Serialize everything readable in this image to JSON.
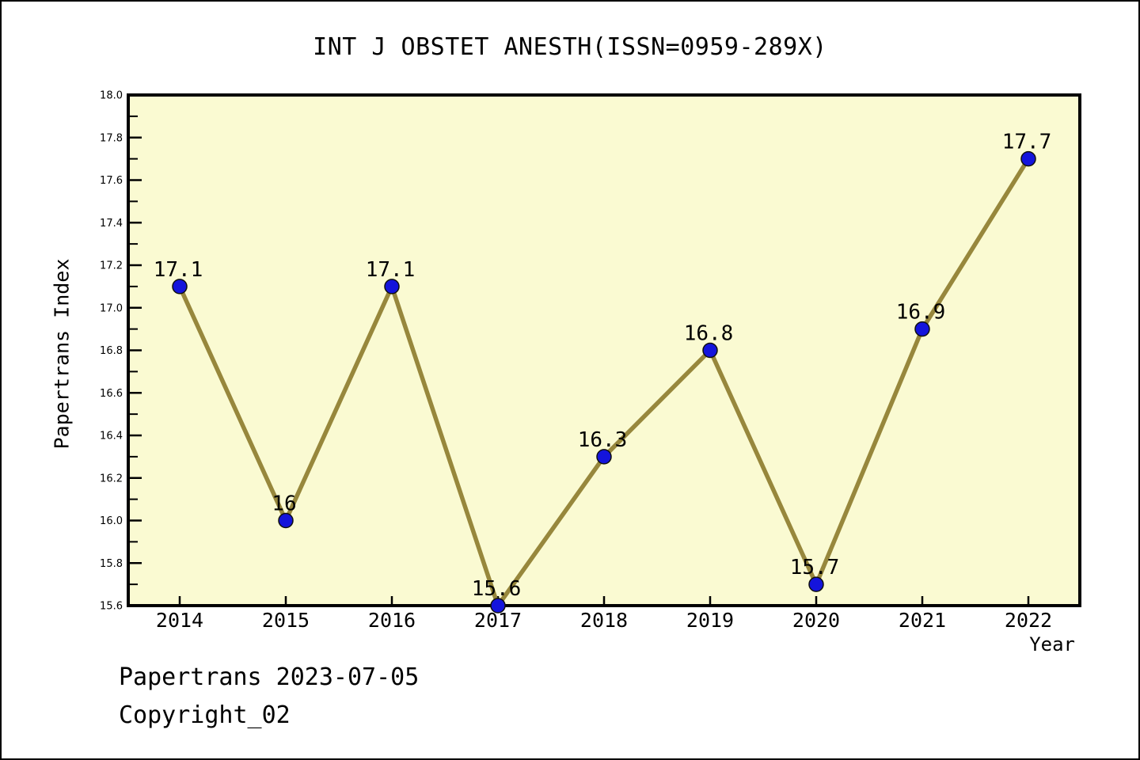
{
  "window": {
    "title": "INT J OBSTET ANESTH(ISSN=0959-289X)"
  },
  "chart_data": {
    "type": "line",
    "title": "INT J OBSTET ANESTH(ISSN=0959-289X)",
    "xlabel": "Year",
    "ylabel": "Papertrans Index",
    "categories": [
      2014,
      2015,
      2016,
      2017,
      2018,
      2019,
      2020,
      2021,
      2022
    ],
    "values": [
      17.1,
      16,
      17.1,
      15.6,
      16.3,
      16.8,
      15.7,
      16.9,
      17.7
    ],
    "point_labels": [
      "17.1",
      "16",
      "17.1",
      "15.6",
      "16.3",
      "16.8",
      "15.7",
      "16.9",
      "17.7"
    ],
    "ylim": [
      15.6,
      18.0
    ],
    "y_major_step": 0.2,
    "y_minor_step": 0.1,
    "grid": false,
    "legend": "none",
    "colors": {
      "line": "#97873C",
      "marker_fill": "#1414DC",
      "marker_edge": "#101010",
      "plot_background": "#FAFAD2",
      "axis": "#000000",
      "text": "#000000"
    }
  },
  "footer": {
    "line1": "Papertrans 2023-07-05",
    "line2": "Copyright_02"
  }
}
